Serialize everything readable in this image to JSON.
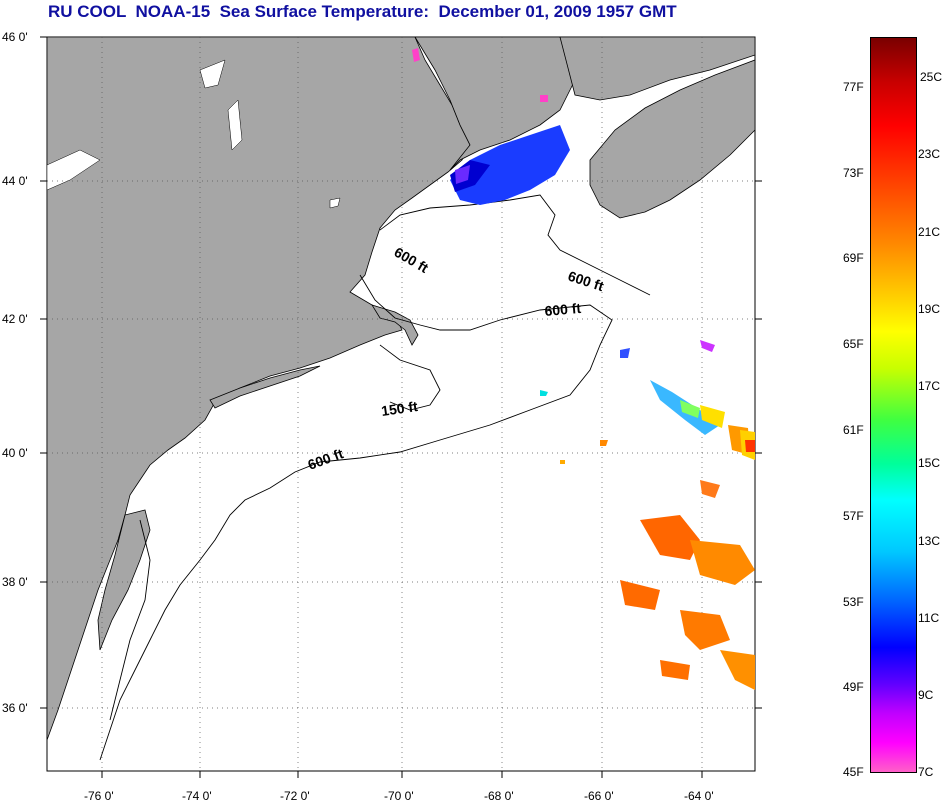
{
  "title": "RU COOL  NOAA-15  Sea Surface Temperature:  December 01, 2009 1957 GMT",
  "latitude_labels": [
    "46 0'",
    "44 0'",
    "42 0'",
    "40 0'",
    "38 0'",
    "36 0'"
  ],
  "longitude_labels": [
    "-76 0'",
    "-74 0'",
    "-72 0'",
    "-70 0'",
    "-68 0'",
    "-66 0'",
    "-64 0'"
  ],
  "contour_labels": [
    "600 ft",
    "600 ft",
    "600 ft",
    "150 ft",
    "600 ft"
  ],
  "colorbar": {
    "fahrenheit": [
      "77F",
      "73F",
      "69F",
      "65F",
      "61F",
      "57F",
      "53F",
      "49F",
      "45F"
    ],
    "celsius": [
      "25C",
      "23C",
      "21C",
      "19C",
      "17C",
      "15C",
      "13C",
      "11C",
      "9C",
      "7C"
    ]
  },
  "colors": {
    "land": "#a6a6a6",
    "title": "#1010a0",
    "sea": "#ffffff"
  }
}
